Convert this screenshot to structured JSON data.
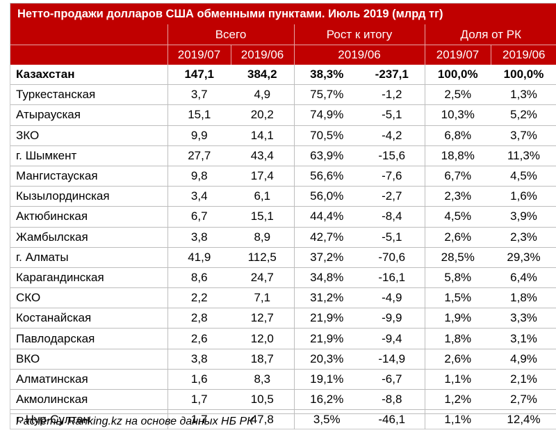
{
  "title": "Нетто-продажи долларов США обменными пунктами. Июль 2019 (млрд тг)",
  "headers": {
    "group_total": "Всего",
    "group_growth": "Рост к итогу",
    "group_share": "Доля от РК",
    "total_jul": "2019/07",
    "total_jun": "2019/06",
    "growth_period": "2019/06",
    "share_jul": "2019/07",
    "share_jun": "2019/06"
  },
  "rows": [
    {
      "name": "Казахстан",
      "total_jul": "147,1",
      "total_jun": "384,2",
      "growth_pct": "38,3%",
      "growth_abs": "-237,1",
      "share_jul": "100,0%",
      "share_jun": "100,0%"
    },
    {
      "name": "Туркестанская",
      "total_jul": "3,7",
      "total_jun": "4,9",
      "growth_pct": "75,7%",
      "growth_abs": "-1,2",
      "share_jul": "2,5%",
      "share_jun": "1,3%"
    },
    {
      "name": "Атырауская",
      "total_jul": "15,1",
      "total_jun": "20,2",
      "growth_pct": "74,9%",
      "growth_abs": "-5,1",
      "share_jul": "10,3%",
      "share_jun": "5,2%"
    },
    {
      "name": "ЗКО",
      "total_jul": "9,9",
      "total_jun": "14,1",
      "growth_pct": "70,5%",
      "growth_abs": "-4,2",
      "share_jul": "6,8%",
      "share_jun": "3,7%"
    },
    {
      "name": "г. Шымкент",
      "total_jul": "27,7",
      "total_jun": "43,4",
      "growth_pct": "63,9%",
      "growth_abs": "-15,6",
      "share_jul": "18,8%",
      "share_jun": "11,3%"
    },
    {
      "name": "Мангистауская",
      "total_jul": "9,8",
      "total_jun": "17,4",
      "growth_pct": "56,6%",
      "growth_abs": "-7,6",
      "share_jul": "6,7%",
      "share_jun": "4,5%"
    },
    {
      "name": "Кызылординская",
      "total_jul": "3,4",
      "total_jun": "6,1",
      "growth_pct": "56,0%",
      "growth_abs": "-2,7",
      "share_jul": "2,3%",
      "share_jun": "1,6%"
    },
    {
      "name": "Актюбинская",
      "total_jul": "6,7",
      "total_jun": "15,1",
      "growth_pct": "44,4%",
      "growth_abs": "-8,4",
      "share_jul": "4,5%",
      "share_jun": "3,9%"
    },
    {
      "name": "Жамбылская",
      "total_jul": "3,8",
      "total_jun": "8,9",
      "growth_pct": "42,7%",
      "growth_abs": "-5,1",
      "share_jul": "2,6%",
      "share_jun": "2,3%"
    },
    {
      "name": "г. Алматы",
      "total_jul": "41,9",
      "total_jun": "112,5",
      "growth_pct": "37,2%",
      "growth_abs": "-70,6",
      "share_jul": "28,5%",
      "share_jun": "29,3%"
    },
    {
      "name": "Карагандинская",
      "total_jul": "8,6",
      "total_jun": "24,7",
      "growth_pct": "34,8%",
      "growth_abs": "-16,1",
      "share_jul": "5,8%",
      "share_jun": "6,4%"
    },
    {
      "name": "СКО",
      "total_jul": "2,2",
      "total_jun": "7,1",
      "growth_pct": "31,2%",
      "growth_abs": "-4,9",
      "share_jul": "1,5%",
      "share_jun": "1,8%"
    },
    {
      "name": "Костанайская",
      "total_jul": "2,8",
      "total_jun": "12,7",
      "growth_pct": "21,9%",
      "growth_abs": "-9,9",
      "share_jul": "1,9%",
      "share_jun": "3,3%"
    },
    {
      "name": "Павлодарская",
      "total_jul": "2,6",
      "total_jun": "12,0",
      "growth_pct": "21,9%",
      "growth_abs": "-9,4",
      "share_jul": "1,8%",
      "share_jun": "3,1%"
    },
    {
      "name": "ВКО",
      "total_jul": "3,8",
      "total_jun": "18,7",
      "growth_pct": "20,3%",
      "growth_abs": "-14,9",
      "share_jul": "2,6%",
      "share_jun": "4,9%"
    },
    {
      "name": "Алматинская",
      "total_jul": "1,6",
      "total_jun": "8,3",
      "growth_pct": "19,1%",
      "growth_abs": "-6,7",
      "share_jul": "1,1%",
      "share_jun": "2,1%"
    },
    {
      "name": "Акмолинская",
      "total_jul": "1,7",
      "total_jun": "10,5",
      "growth_pct": "16,2%",
      "growth_abs": "-8,8",
      "share_jul": "1,2%",
      "share_jun": "2,7%"
    },
    {
      "name": "г. Нур-Султан",
      "total_jul": "1,7",
      "total_jun": "47,8",
      "growth_pct": "3,5%",
      "growth_abs": "-46,1",
      "share_jul": "1,1%",
      "share_jun": "12,4%"
    }
  ],
  "footer": "Расчёты Ranking.kz на основе данных НБ РК",
  "colors": {
    "header_bg": "#c00000",
    "header_text": "#ffffff"
  }
}
